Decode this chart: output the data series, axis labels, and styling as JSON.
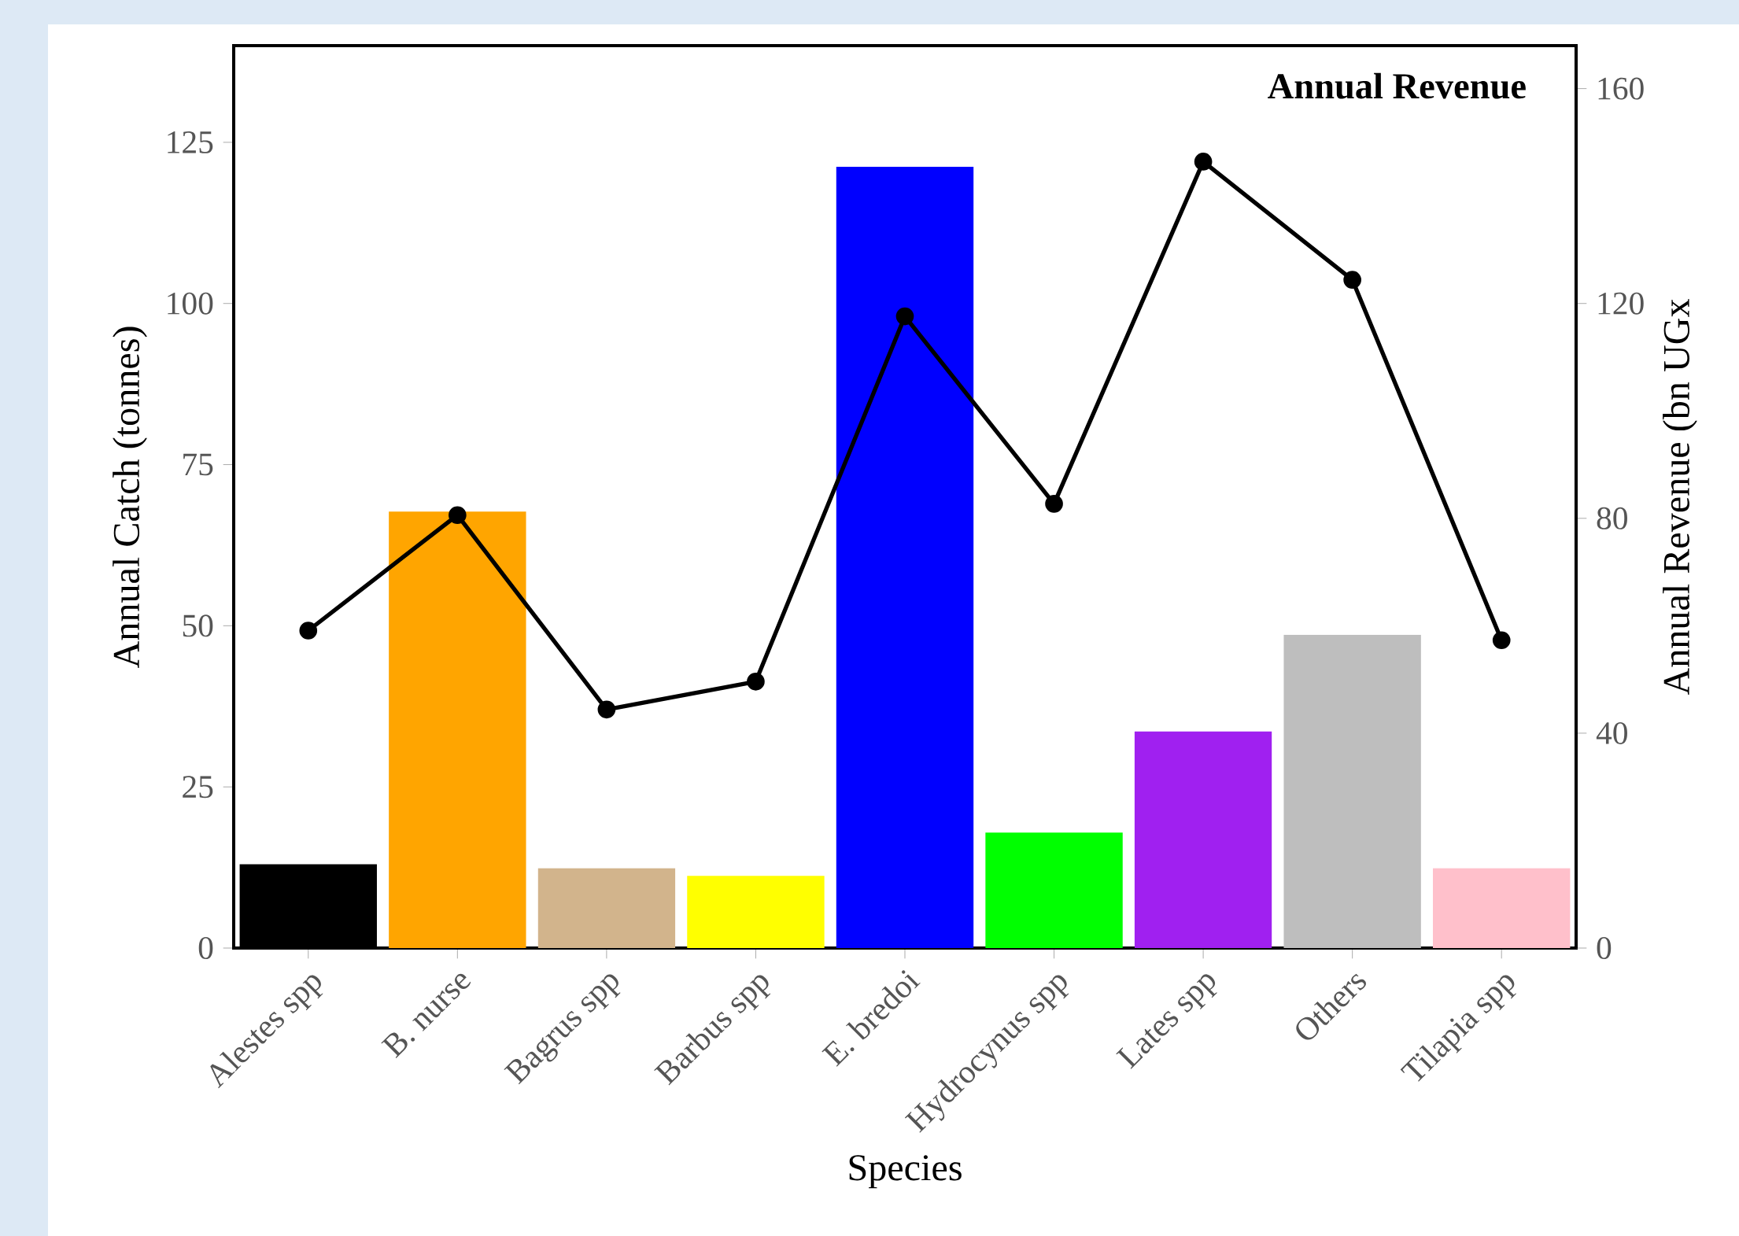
{
  "chart_data": {
    "type": "bar",
    "categories": [
      "Alestes spp",
      "B. nurse",
      "Bagrus spp",
      "Barbus spp",
      "E. bredoi",
      "Hydrocynus spp",
      "Lates spp",
      "Others",
      "Tilapia spp"
    ],
    "series": [
      {
        "colors": [
          "#000000",
          "#ffa500",
          "#d2b48c",
          "#ffff00",
          "#0000ff",
          "#00ff00",
          "#a020f0",
          "#bebebe",
          "#ffc0cb"
        ],
        "values": [
          13,
          67.7,
          12.4,
          11.2,
          121.2,
          17.9,
          33.6,
          48.6,
          12.4
        ]
      },
      {
        "type": "line",
        "axis": "y2",
        "name": "Annual Revenue",
        "color": "#000000",
        "values": [
          59.1,
          80.6,
          44.4,
          49.6,
          117.6,
          82.7,
          146.4,
          124.4,
          57.3
        ]
      }
    ],
    "xlabel": "Species",
    "ylabel": "Annual Catch (tonnes)",
    "y2label": "Annual Revenue (bn UGx",
    "ylim": [
      0,
      140
    ],
    "yticks": [
      0,
      25,
      50,
      75,
      100,
      125
    ],
    "y2lim": [
      0,
      168
    ],
    "y2ticks": [
      0,
      40,
      80,
      120,
      160
    ],
    "marker": "circle"
  }
}
